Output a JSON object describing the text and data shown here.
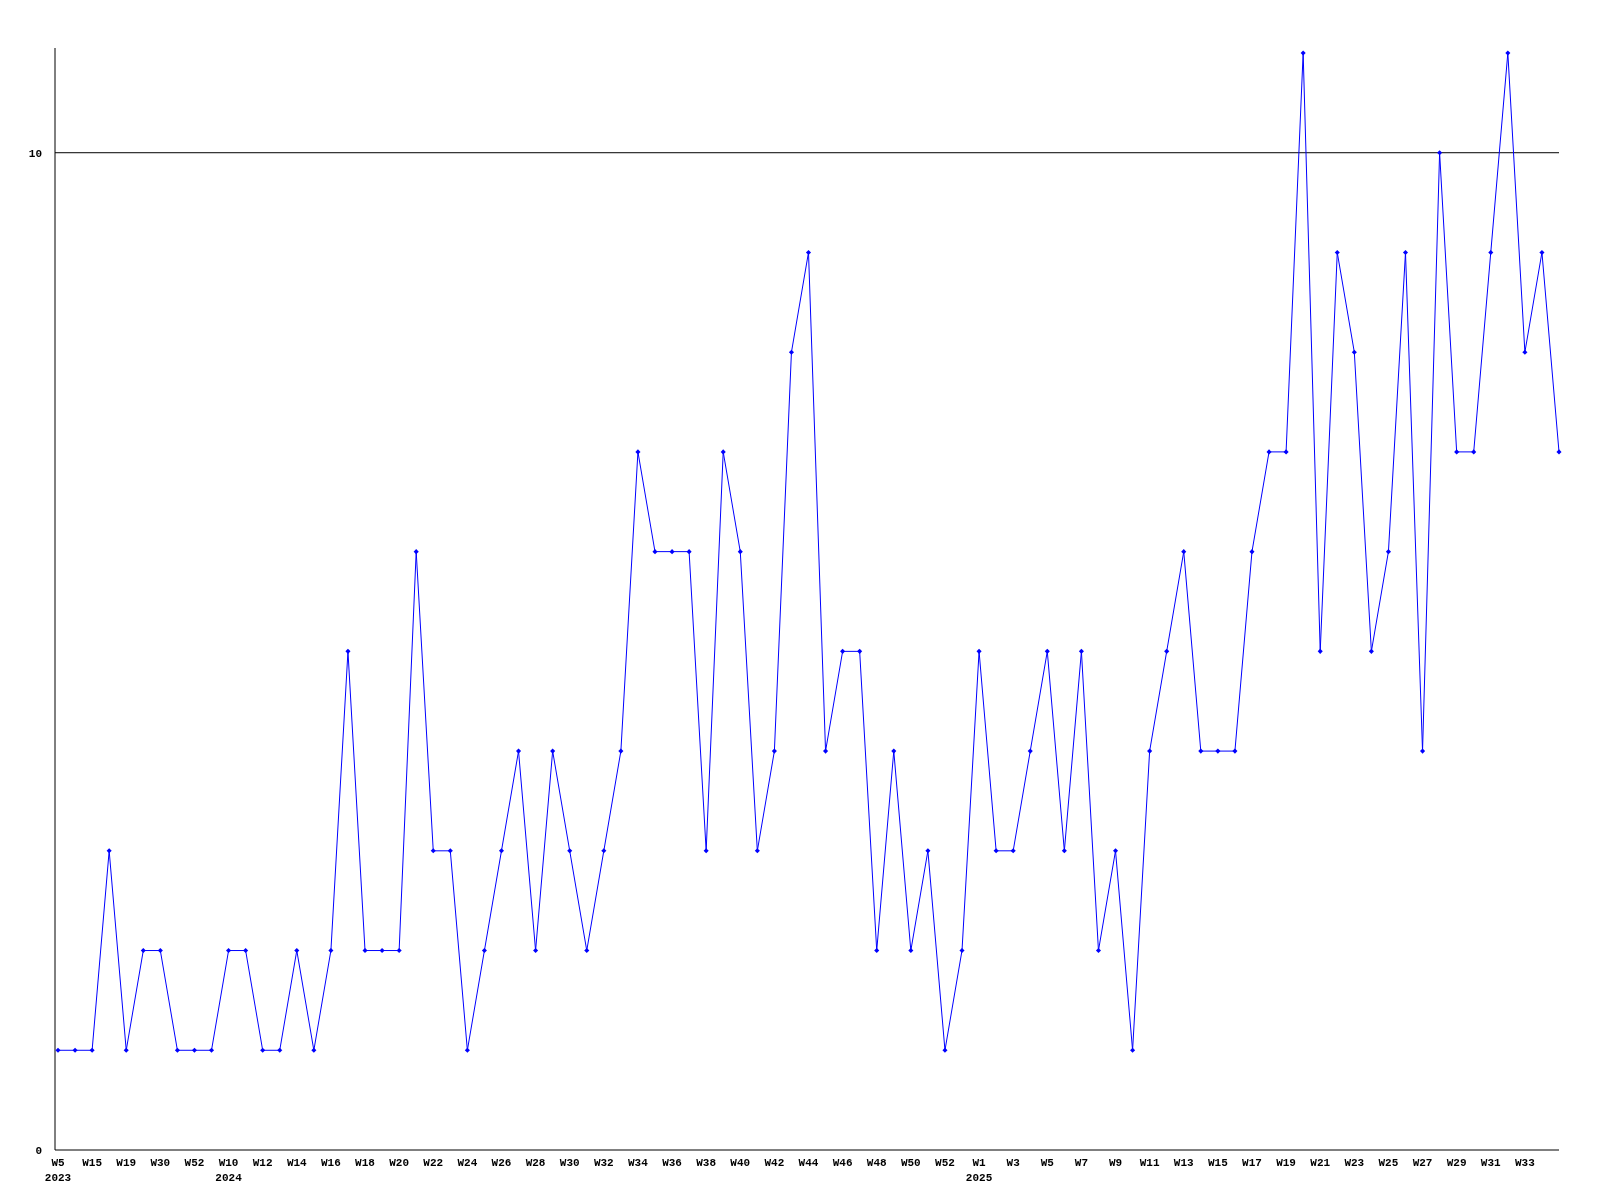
{
  "chart_data": {
    "type": "line",
    "categories": [
      "W5\n2023",
      null,
      "W15",
      null,
      "W19",
      null,
      "W30",
      null,
      "W52",
      null,
      "W10\n2024",
      null,
      "W12",
      null,
      "W14",
      null,
      "W16",
      null,
      "W18",
      null,
      "W20",
      null,
      "W22",
      null,
      "W24",
      null,
      "W26",
      null,
      "W28",
      null,
      "W30",
      null,
      "W32",
      null,
      "W34",
      null,
      "W36",
      null,
      "W38",
      null,
      "W40",
      null,
      "W42",
      null,
      "W44",
      null,
      "W46",
      null,
      "W48",
      null,
      "W50",
      null,
      "W52",
      null,
      "W1\n2025",
      null,
      "W3",
      null,
      "W5",
      null,
      "W7",
      null,
      "W9",
      null,
      "W11",
      null,
      "W13",
      null,
      "W15",
      null,
      "W17",
      null,
      "W19",
      null,
      "W21",
      null,
      "W23",
      null,
      "W25",
      null,
      "W27",
      null,
      "W29",
      null,
      "W31",
      null,
      "W33",
      null,
      null
    ],
    "series": [
      {
        "color": "#0000ff",
        "values": [
          1,
          1,
          1,
          3,
          1,
          2,
          2,
          1,
          1,
          1,
          2,
          2,
          1,
          1,
          2,
          1,
          2,
          5,
          2,
          2,
          2,
          6,
          3,
          3,
          1,
          2,
          3,
          4,
          2,
          4,
          3,
          2,
          3,
          4,
          7,
          6,
          6,
          6,
          3,
          7,
          6,
          3,
          4,
          8,
          9,
          4,
          5,
          5,
          2,
          4,
          2,
          3,
          1,
          2,
          5,
          3,
          3,
          4,
          5,
          3,
          5,
          2,
          3,
          1,
          4,
          5,
          6,
          4,
          4,
          4,
          6,
          7,
          7,
          11,
          5,
          9,
          8,
          5,
          6,
          9,
          4,
          10,
          7,
          7,
          9,
          11,
          8,
          9,
          7
        ]
      }
    ],
    "ylim": [
      0,
      11.03
    ],
    "yticks": [
      0,
      10
    ],
    "ref_lines": [
      {
        "axis": "y",
        "value": 10,
        "color": "#000000"
      }
    ],
    "marker": "diamond",
    "line_style": "solid",
    "grid": false
  }
}
